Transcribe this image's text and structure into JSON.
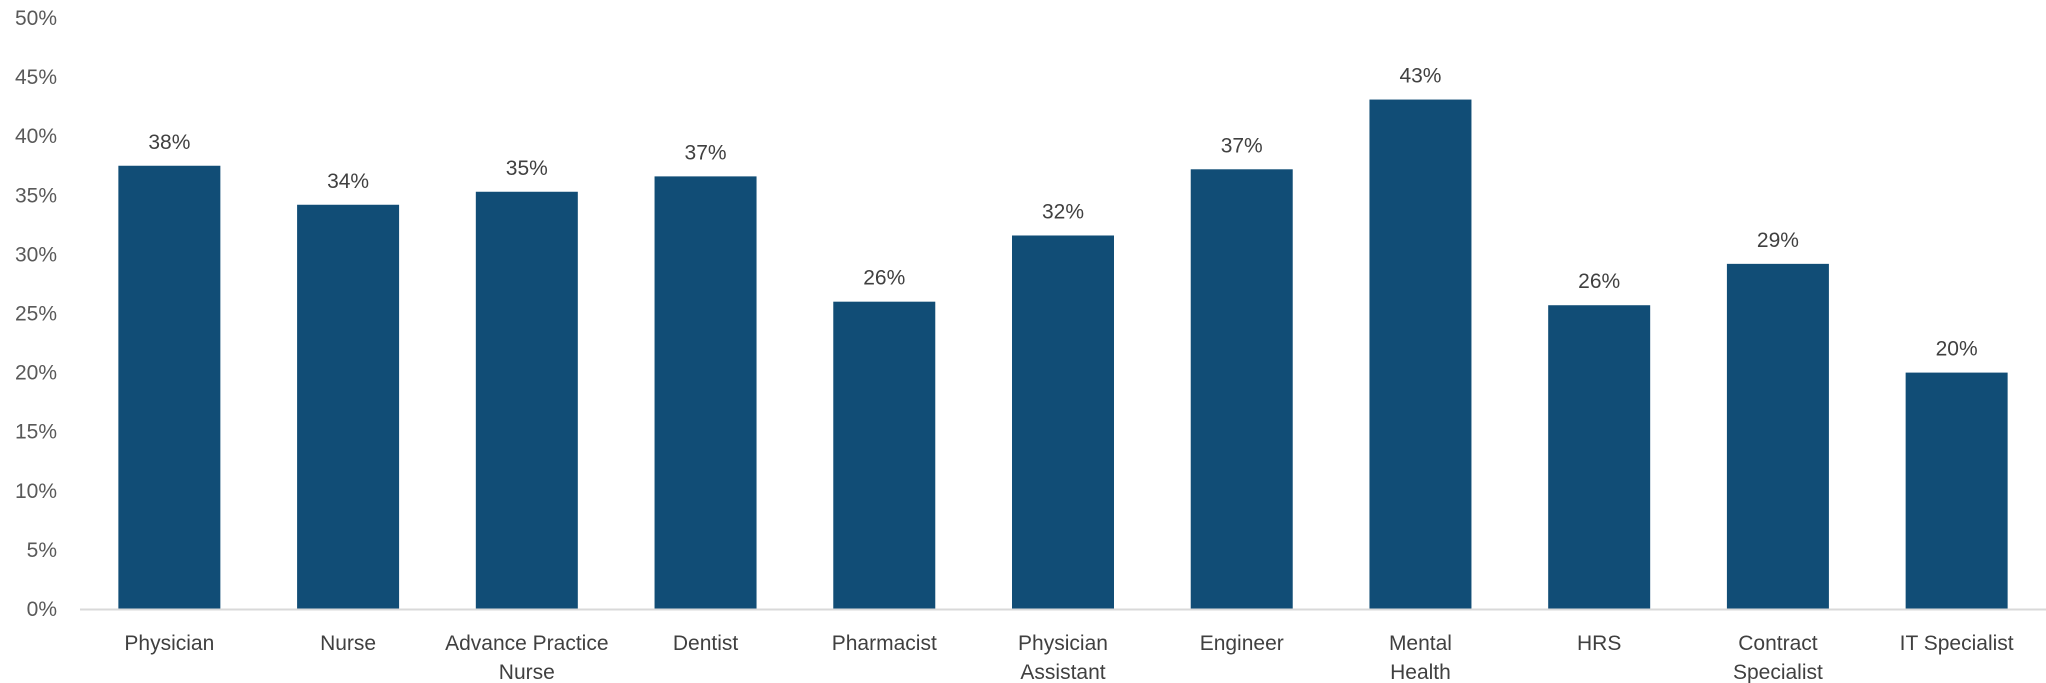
{
  "chart_data": {
    "type": "bar",
    "categories": [
      [
        "Physician"
      ],
      [
        "Nurse"
      ],
      [
        "Advance Practice",
        "Nurse"
      ],
      [
        "Dentist"
      ],
      [
        "Pharmacist"
      ],
      [
        "Physician",
        "Assistant"
      ],
      [
        "Engineer"
      ],
      [
        "Mental",
        "Health"
      ],
      [
        "HRS"
      ],
      [
        "Contract",
        "Specialist"
      ],
      [
        "IT Specialist"
      ]
    ],
    "values": [
      37.5,
      34.2,
      35.3,
      36.6,
      26.0,
      31.6,
      37.2,
      43.1,
      25.7,
      29.2,
      20.0
    ],
    "data_labels": [
      "38%",
      "34%",
      "35%",
      "37%",
      "26%",
      "32%",
      "37%",
      "43%",
      "26%",
      "29%",
      "20%"
    ],
    "y_ticks": [
      0,
      5,
      10,
      15,
      20,
      25,
      30,
      35,
      40,
      45,
      50
    ],
    "y_tick_labels": [
      "0%",
      "5%",
      "10%",
      "15%",
      "20%",
      "25%",
      "30%",
      "35%",
      "40%",
      "45%",
      "50%"
    ],
    "ylim": [
      0,
      50
    ],
    "title": "",
    "xlabel": "",
    "ylabel": "",
    "grid": false,
    "legend": "none",
    "bar_color": "#114D76",
    "axis_color": "#D9D9D9"
  }
}
